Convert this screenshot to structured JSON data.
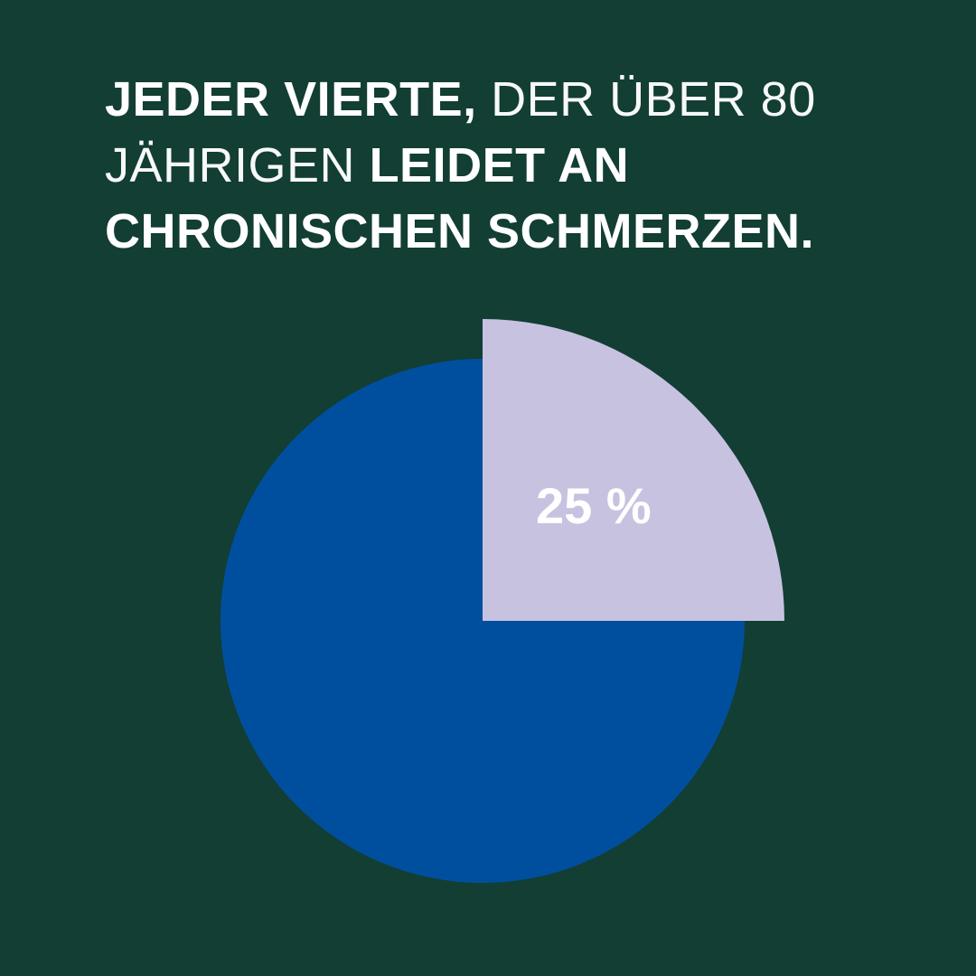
{
  "headline": {
    "line1_bold": "JEDER VIERTE,",
    "line1_light": "DER ÜBER 80",
    "line2_light": "JÄHRIGEN",
    "line2_bold": "LEIDET AN",
    "line3_bold": "CHRONISCHEN SCHMERZEN."
  },
  "colors": {
    "background": "#123e34",
    "highlight_slice": "#c8c2e1",
    "remainder_slice": "#004f9f",
    "text": "#ffffff"
  },
  "chart_data": {
    "type": "pie",
    "title": "JEDER VIERTE, DER ÜBER 80 JÄHRIGEN LEIDET AN CHRONISCHEN SCHMERZEN.",
    "slices": [
      {
        "value": 25,
        "label": "25 %",
        "color": "#c8c2e1",
        "exploded": true
      },
      {
        "value": 75,
        "label": "",
        "color": "#004f9f",
        "exploded": false
      }
    ],
    "legend": "none"
  }
}
